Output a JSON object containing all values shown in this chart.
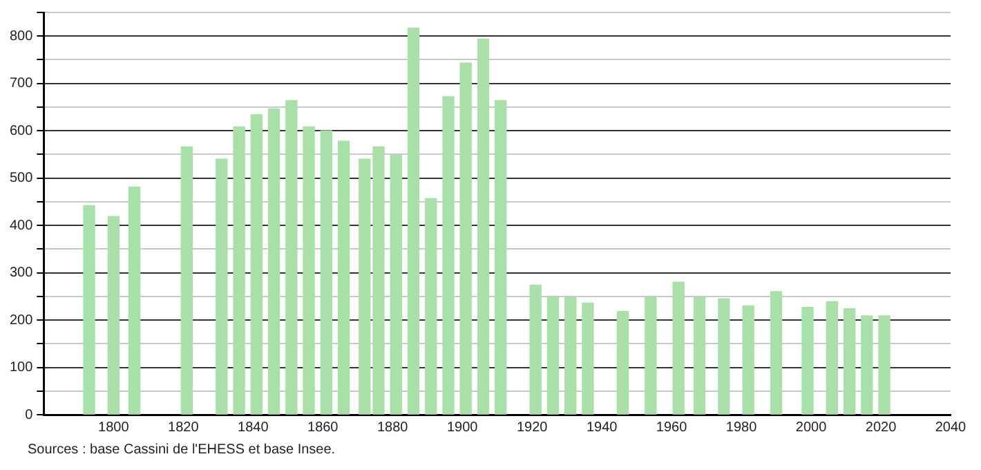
{
  "chart_data": {
    "type": "bar",
    "x": [
      1793,
      1800,
      1806,
      1821,
      1831,
      1836,
      1841,
      1846,
      1851,
      1856,
      1861,
      1866,
      1872,
      1876,
      1881,
      1886,
      1891,
      1896,
      1901,
      1906,
      1911,
      1921,
      1926,
      1931,
      1936,
      1946,
      1954,
      1962,
      1968,
      1975,
      1982,
      1990,
      1999,
      2006,
      2011,
      2016,
      2021
    ],
    "values": [
      442,
      419,
      481,
      566,
      540,
      608,
      634,
      646,
      664,
      608,
      600,
      578,
      540,
      566,
      549,
      817,
      457,
      672,
      743,
      794,
      664,
      274,
      248,
      248,
      236,
      218,
      248,
      280,
      248,
      245,
      230,
      260,
      227,
      239,
      224,
      209,
      209
    ],
    "color": "#a8e0a8",
    "xlim": [
      1780,
      2040
    ],
    "xticks": [
      {
        "value": 1780,
        "label": null
      },
      1800,
      1820,
      1840,
      1860,
      1880,
      1900,
      1920,
      1940,
      1960,
      1980,
      2000,
      2020,
      2040
    ],
    "ylim": [
      0,
      850
    ],
    "yticks": [
      0,
      {
        "value": 50,
        "label": null
      },
      100,
      {
        "value": 150,
        "label": null
      },
      200,
      {
        "value": 250,
        "label": null
      },
      300,
      {
        "value": 350,
        "label": null
      },
      400,
      {
        "value": 450,
        "label": null
      },
      500,
      {
        "value": 550,
        "label": null
      },
      600,
      {
        "value": 650,
        "label": null
      },
      700,
      {
        "value": 750,
        "label": null
      },
      800,
      {
        "value": 850,
        "label": null
      }
    ],
    "grid": "y",
    "annotations": [
      "Sources : base Cassini de l'EHESS et base Insee."
    ]
  }
}
